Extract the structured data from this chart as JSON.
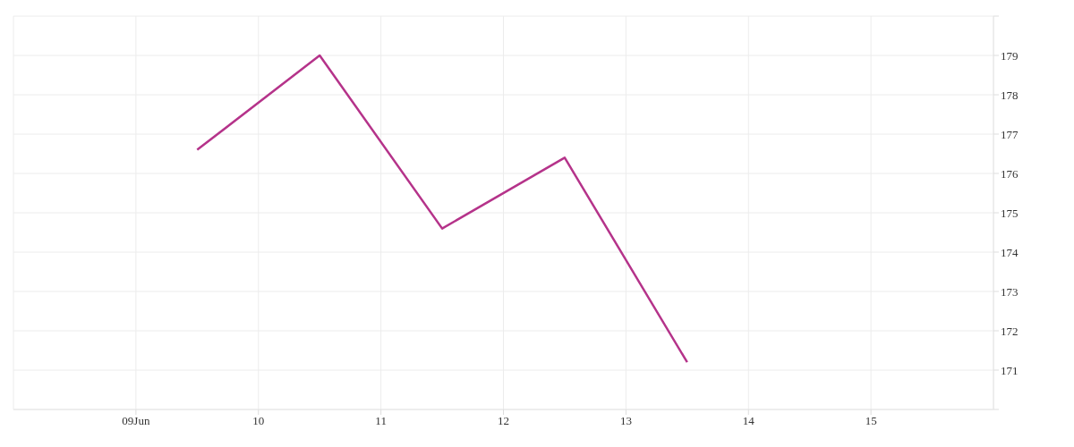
{
  "chart_data": {
    "type": "line",
    "x": [
      "--06-09T12:00",
      "--06-10T12:00",
      "--06-11T12:00",
      "--06-12T12:00",
      "--06-13T12:00"
    ],
    "series": [
      {
        "color": "#b5338a",
        "values": [
          176.6,
          179.0,
          174.6,
          176.4,
          171.2
        ]
      }
    ],
    "xlim": [
      "--06-08",
      "--06-16"
    ],
    "xticks": [
      {
        "value": "--06-09",
        "label": "09Jun"
      },
      {
        "value": "--06-10",
        "label": "10"
      },
      {
        "value": "--06-11",
        "label": "11"
      },
      {
        "value": "--06-12",
        "label": "12"
      },
      {
        "value": "--06-13",
        "label": "13"
      },
      {
        "value": "--06-14",
        "label": "14"
      },
      {
        "value": "--06-15",
        "label": "15"
      }
    ],
    "ylim": [
      170,
      180
    ],
    "yticks": [
      {
        "value": 170,
        "label": null
      },
      171,
      172,
      173,
      174,
      175,
      176,
      177,
      178,
      179,
      {
        "value": 180,
        "label": null
      }
    ],
    "grid": true,
    "legend": false,
    "marker": "none",
    "line_style": "solid"
  }
}
